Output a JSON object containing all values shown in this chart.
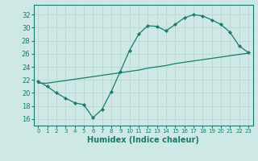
{
  "title": "",
  "xlabel": "Humidex (Indice chaleur)",
  "ylabel": "",
  "x_ticks": [
    0,
    1,
    2,
    3,
    4,
    5,
    6,
    7,
    8,
    9,
    10,
    11,
    12,
    13,
    14,
    15,
    16,
    17,
    18,
    19,
    20,
    21,
    22,
    23
  ],
  "y_ticks": [
    16,
    18,
    20,
    22,
    24,
    26,
    28,
    30,
    32
  ],
  "xlim": [
    -0.5,
    23.5
  ],
  "ylim": [
    15.0,
    33.5
  ],
  "bg_color": "#cde8e5",
  "line_color": "#1a7a6e",
  "grid_color": "#c0d8d4",
  "line1_x": [
    0,
    1,
    2,
    3,
    4,
    5,
    6,
    7,
    8,
    9,
    10,
    11,
    12,
    13,
    14,
    15,
    16,
    17,
    18,
    19,
    20,
    21,
    22,
    23
  ],
  "line1_y": [
    21.8,
    21.0,
    20.0,
    19.2,
    18.5,
    18.2,
    16.2,
    17.5,
    20.2,
    23.3,
    26.5,
    29.0,
    30.3,
    30.2,
    29.5,
    30.5,
    31.5,
    32.0,
    31.8,
    31.2,
    30.5,
    29.3,
    27.2,
    26.2
  ],
  "line2_x": [
    0,
    1,
    2,
    3,
    4,
    5,
    6,
    7,
    8,
    9,
    10,
    11,
    12,
    13,
    14,
    15,
    16,
    17,
    18,
    19,
    20,
    21,
    22,
    23
  ],
  "line2_y": [
    21.5,
    21.5,
    21.7,
    21.9,
    22.1,
    22.3,
    22.5,
    22.7,
    22.9,
    23.1,
    23.3,
    23.5,
    23.8,
    24.0,
    24.2,
    24.5,
    24.7,
    24.9,
    25.1,
    25.3,
    25.5,
    25.7,
    25.9,
    26.1
  ]
}
